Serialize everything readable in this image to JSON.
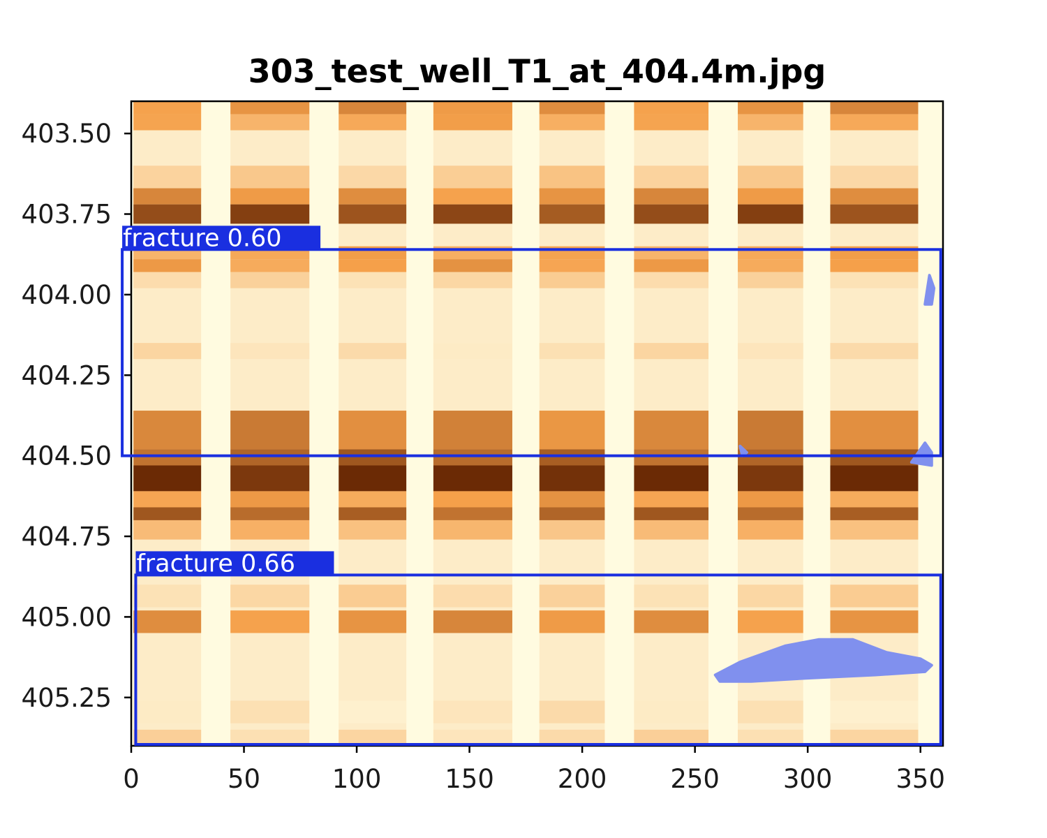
{
  "chart_data": {
    "type": "heatmap",
    "title": "303_test_well_T1_at_404.4m.jpg",
    "xlabel": "",
    "ylabel": "",
    "xlim": [
      0,
      360
    ],
    "ylim": [
      405.4,
      403.4
    ],
    "x_ticks": [
      "0",
      "50",
      "100",
      "150",
      "200",
      "250",
      "300",
      "350"
    ],
    "x_tick_values": [
      0,
      50,
      100,
      150,
      200,
      250,
      300,
      350
    ],
    "y_ticks": [
      "403.50",
      "403.75",
      "404.00",
      "404.25",
      "404.50",
      "404.75",
      "405.00",
      "405.25"
    ],
    "y_tick_values": [
      403.5,
      403.75,
      404.0,
      404.25,
      404.5,
      404.75,
      405.0,
      405.25
    ],
    "colormap": "YlOrBr",
    "colors": {
      "low": "#fffbe0",
      "mid": "#f5a04a",
      "high": "#6b2a05",
      "box": "#1a2fe0",
      "mask": "#8090ee"
    },
    "strips": [
      {
        "x0": 1,
        "x1": 31
      },
      {
        "x0": 44,
        "x1": 79
      },
      {
        "x0": 92,
        "x1": 122
      },
      {
        "x0": 134,
        "x1": 169
      },
      {
        "x0": 181,
        "x1": 210
      },
      {
        "x0": 223,
        "x1": 256
      },
      {
        "x0": 269,
        "x1": 298
      },
      {
        "x0": 310,
        "x1": 349
      }
    ],
    "bands": [
      {
        "y0": 403.4,
        "y1": 403.44,
        "level": 0.55
      },
      {
        "y0": 403.44,
        "y1": 403.49,
        "level": 0.45
      },
      {
        "y0": 403.6,
        "y1": 403.68,
        "level": 0.25
      },
      {
        "y0": 403.67,
        "y1": 403.72,
        "level": 0.55
      },
      {
        "y0": 403.72,
        "y1": 403.78,
        "level": 0.85
      },
      {
        "y0": 403.85,
        "y1": 403.89,
        "level": 0.45
      },
      {
        "y0": 403.89,
        "y1": 403.93,
        "level": 0.5
      },
      {
        "y0": 403.93,
        "y1": 403.98,
        "level": 0.2
      },
      {
        "y0": 404.15,
        "y1": 404.2,
        "level": 0.15
      },
      {
        "y0": 404.36,
        "y1": 404.48,
        "level": 0.6
      },
      {
        "y0": 404.48,
        "y1": 404.53,
        "level": 0.75
      },
      {
        "y0": 404.53,
        "y1": 404.61,
        "level": 1.0
      },
      {
        "y0": 404.61,
        "y1": 404.66,
        "level": 0.5
      },
      {
        "y0": 404.66,
        "y1": 404.7,
        "level": 0.75
      },
      {
        "y0": 404.7,
        "y1": 404.76,
        "level": 0.35
      },
      {
        "y0": 404.9,
        "y1": 404.97,
        "level": 0.2
      },
      {
        "y0": 404.98,
        "y1": 405.05,
        "level": 0.55
      },
      {
        "y0": 405.26,
        "y1": 405.33,
        "level": 0.12
      },
      {
        "y0": 405.35,
        "y1": 405.4,
        "level": 0.18
      }
    ],
    "detections": [
      {
        "label": "fracture  0.60",
        "class": "fracture",
        "score": 0.6,
        "x_range": [
          -4,
          359
        ],
        "depth_range": [
          403.86,
          404.5
        ]
      },
      {
        "label": "fracture  0.66",
        "class": "fracture",
        "score": 0.66,
        "x_range": [
          2,
          359
        ],
        "depth_range": [
          404.87,
          405.4
        ]
      }
    ],
    "masks": [
      {
        "points": [
          [
            352,
            404.03
          ],
          [
            354,
            403.94
          ],
          [
            356,
            403.98
          ],
          [
            355,
            404.03
          ]
        ]
      },
      {
        "points": [
          [
            270,
            404.47
          ],
          [
            273,
            404.49
          ],
          [
            271,
            404.5
          ]
        ]
      },
      {
        "points": [
          [
            346,
            404.52
          ],
          [
            352,
            404.46
          ],
          [
            355,
            404.49
          ],
          [
            355,
            404.53
          ]
        ]
      },
      {
        "points": [
          [
            259,
            405.18
          ],
          [
            270,
            405.14
          ],
          [
            290,
            405.09
          ],
          [
            305,
            405.07
          ],
          [
            320,
            405.07
          ],
          [
            335,
            405.11
          ],
          [
            350,
            405.13
          ],
          [
            355,
            405.15
          ],
          [
            352,
            405.17
          ],
          [
            330,
            405.18
          ],
          [
            300,
            405.19
          ],
          [
            275,
            405.2
          ],
          [
            261,
            405.2
          ]
        ]
      }
    ]
  }
}
